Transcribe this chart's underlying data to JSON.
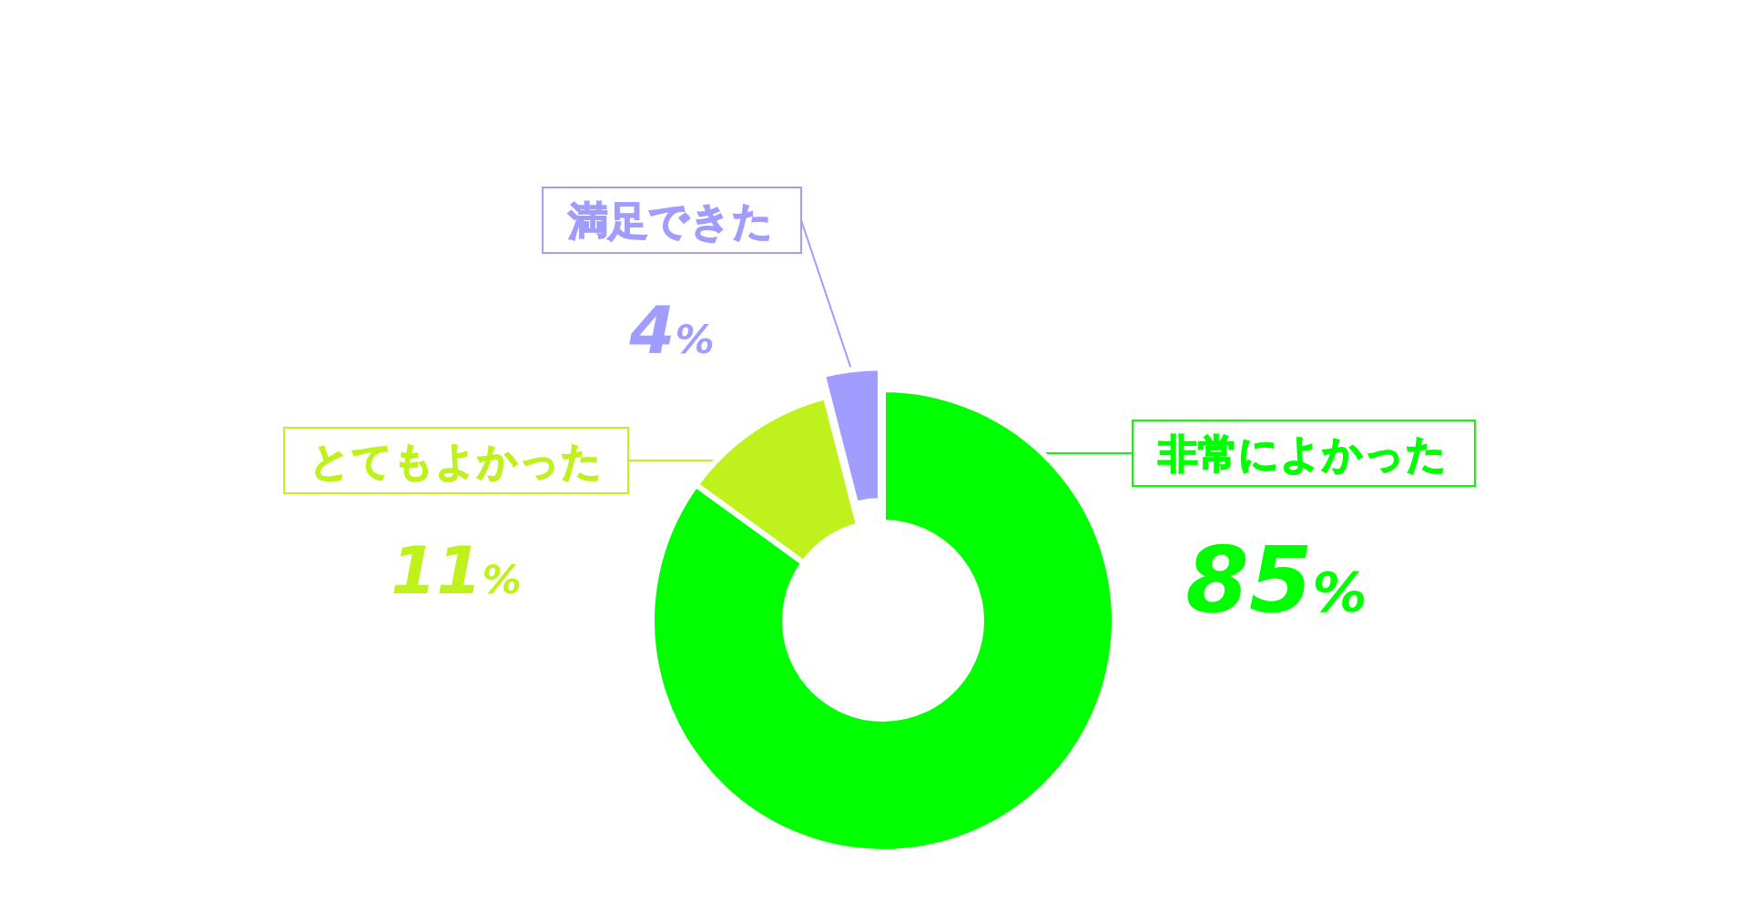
{
  "chart_data": {
    "type": "donut",
    "categories": [
      "非常によかった",
      "とてもよかった",
      "満足できた"
    ],
    "values": [
      85,
      11,
      4
    ],
    "colors": [
      "#00ff00",
      "#bff11c",
      "#a19dff"
    ],
    "value_labels": [
      "85%",
      "11%",
      "4%"
    ]
  }
}
